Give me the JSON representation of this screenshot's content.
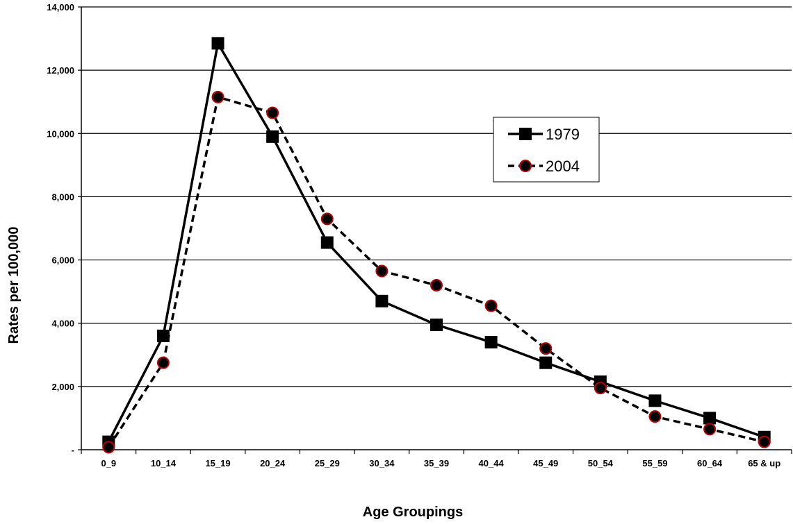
{
  "chart_data": {
    "type": "line",
    "title": "",
    "xlabel": "Age Groupings",
    "ylabel": "Rates per 100,000",
    "categories": [
      "0_9",
      "10_14",
      "15_19",
      "20_24",
      "25_29",
      "30_34",
      "35_39",
      "40_44",
      "45_49",
      "50_54",
      "55_59",
      "60_64",
      "65 & up"
    ],
    "ylim": [
      0,
      14000
    ],
    "yticks": [
      0,
      2000,
      4000,
      6000,
      8000,
      10000,
      12000,
      14000
    ],
    "ytick_labels": [
      "-",
      "2,000",
      "4,000",
      "6,000",
      "8,000",
      "10,000",
      "12,000",
      "14,000"
    ],
    "grid": true,
    "legend_position": "upper-right",
    "series": [
      {
        "name": "1979",
        "style": "solid",
        "marker": "square",
        "color": "#000000",
        "values": [
          250,
          3600,
          12850,
          9900,
          6550,
          4700,
          3950,
          3400,
          2750,
          2150,
          1550,
          1000,
          400
        ]
      },
      {
        "name": "2004",
        "style": "dashed",
        "marker": "circle",
        "color": "#000000",
        "marker_edge": "#c00000",
        "values": [
          80,
          2750,
          11150,
          10650,
          7300,
          5650,
          5200,
          4550,
          3200,
          1950,
          1050,
          650,
          250
        ]
      }
    ]
  }
}
